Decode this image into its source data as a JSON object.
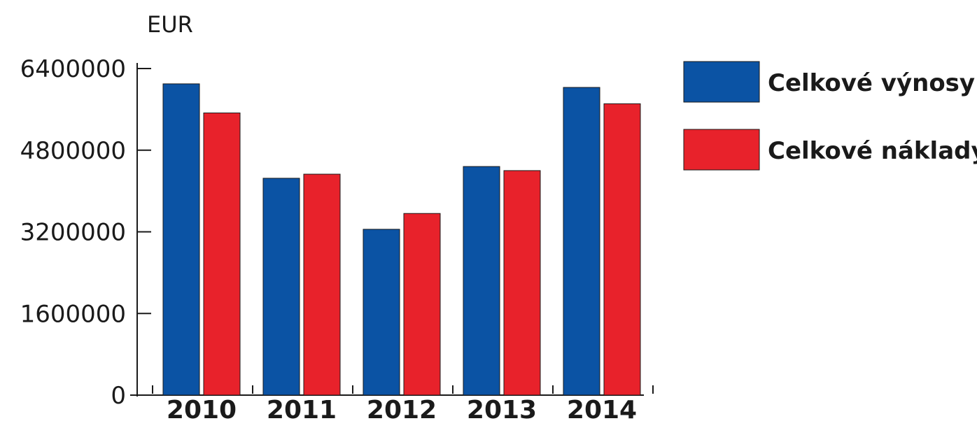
{
  "chart_data": {
    "type": "bar",
    "ylabel": "EUR",
    "categories": [
      "2010",
      "2011",
      "2012",
      "2013",
      "2014"
    ],
    "series": [
      {
        "name": "Celkové výnosy",
        "color": "#0b53a4",
        "values": [
          6100000,
          4250000,
          3250000,
          4480000,
          6030000
        ]
      },
      {
        "name": "Celkové náklady",
        "color": "#e8222b",
        "values": [
          5530000,
          4330000,
          3560000,
          4400000,
          5710000
        ]
      }
    ],
    "ylim": [
      0,
      6400000
    ],
    "yticks": [
      "0",
      "1600000",
      "3200000",
      "4800000",
      "6400000"
    ],
    "ytick_values": [
      0,
      1600000,
      3200000,
      4800000,
      6400000
    ],
    "grid": false,
    "legend_position": "right"
  }
}
